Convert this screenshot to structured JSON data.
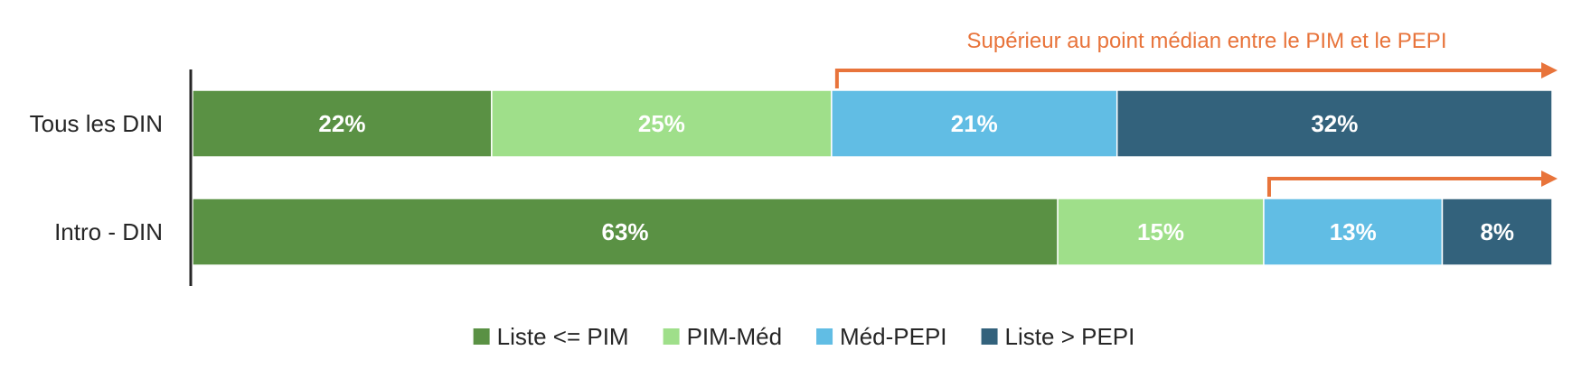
{
  "chart_data": {
    "type": "bar",
    "orientation": "horizontal",
    "stacked": true,
    "percent": true,
    "categories": [
      "Tous les DIN",
      "Intro - DIN"
    ],
    "series": [
      {
        "name": "Liste <= PIM",
        "color": "#5a9144",
        "values": [
          22,
          63
        ],
        "labels": [
          "22%",
          "63%"
        ]
      },
      {
        "name": "PIM-Méd",
        "color": "#9fdf8a",
        "values": [
          25,
          15
        ],
        "labels": [
          "25%",
          "15%"
        ]
      },
      {
        "name": "Méd-PEPI",
        "color": "#61bde4",
        "values": [
          21,
          13
        ],
        "labels": [
          "21%",
          "13%"
        ]
      },
      {
        "name": "Liste > PEPI",
        "color": "#33627c",
        "values": [
          32,
          8
        ],
        "labels": [
          "32%",
          "8%"
        ]
      }
    ],
    "legend_position": "bottom",
    "grid": false,
    "xlim": [
      0,
      100
    ],
    "annotation": {
      "text": "Supérieur au point médian entre le PIM et le PEPI",
      "color": "#e8743b",
      "from_series_index": 2
    }
  }
}
